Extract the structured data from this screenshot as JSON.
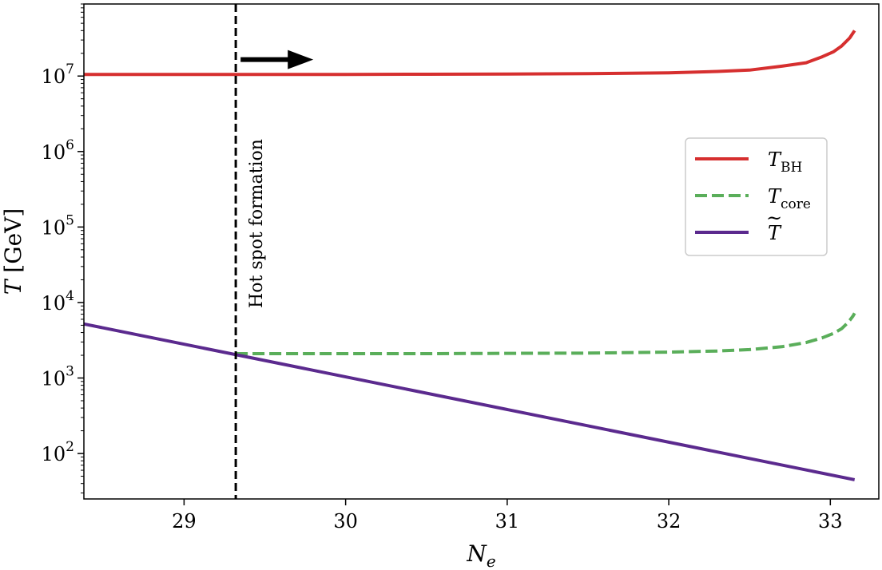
{
  "chart_data": {
    "type": "line",
    "title": "",
    "xlabel": "N_e",
    "ylabel": "T [GeV]",
    "yscale": "log",
    "xlim": [
      28.38,
      33.3
    ],
    "ylim": [
      25,
      90000000
    ],
    "grid": false,
    "legend_position": "center-right",
    "x_ticks": [
      {
        "value": 29,
        "label": "29"
      },
      {
        "value": 30,
        "label": "30"
      },
      {
        "value": 31,
        "label": "31"
      },
      {
        "value": 32,
        "label": "32"
      },
      {
        "value": 33,
        "label": "33"
      }
    ],
    "y_ticks": [
      {
        "value": 100,
        "base": "10",
        "exp": "2"
      },
      {
        "value": 1000,
        "base": "10",
        "exp": "3"
      },
      {
        "value": 10000,
        "base": "10",
        "exp": "4"
      },
      {
        "value": 100000,
        "base": "10",
        "exp": "5"
      },
      {
        "value": 1000000,
        "base": "10",
        "exp": "6"
      },
      {
        "value": 10000000,
        "base": "10",
        "exp": "7"
      }
    ],
    "series": [
      {
        "name": "T_BH",
        "label_main": "T",
        "label_sub": "BH",
        "color": "#d62f2f",
        "dash": "solid",
        "x": [
          28.38,
          29.0,
          29.32,
          30.0,
          30.5,
          31.0,
          31.5,
          32.0,
          32.3,
          32.5,
          32.7,
          32.85,
          32.95,
          33.02,
          33.07,
          33.1,
          33.12,
          33.14,
          33.15
        ],
        "y": [
          10500000,
          10500000,
          10500000,
          10500000,
          10550000,
          10600000,
          10750000,
          11000000,
          11500000,
          12000000,
          13500000,
          15000000,
          18000000,
          21000000,
          25000000,
          29000000,
          32000000,
          37000000,
          40000000
        ]
      },
      {
        "name": "T_core",
        "label_main": "T",
        "label_sub": "core",
        "color": "#5aae5a",
        "dash": "dashed",
        "x": [
          29.32,
          29.5,
          30.0,
          30.5,
          31.0,
          31.5,
          32.0,
          32.3,
          32.5,
          32.7,
          32.85,
          32.95,
          33.02,
          33.07,
          33.1,
          33.12,
          33.14,
          33.15
        ],
        "y": [
          2100,
          2100,
          2100,
          2100,
          2120,
          2140,
          2200,
          2280,
          2380,
          2600,
          2950,
          3400,
          3900,
          4500,
          5200,
          5800,
          6600,
          7200
        ]
      },
      {
        "name": "T~",
        "label_main": "T",
        "label_sub": "",
        "color": "#5b2a8e",
        "dash": "solid",
        "x": [
          28.38,
          33.15
        ],
        "y": [
          5200,
          45
        ]
      }
    ],
    "vline": {
      "x": 29.32,
      "color": "#000000",
      "dash": "dashed"
    },
    "annotation": {
      "text": "Hot spot formation"
    },
    "arrow": {
      "x_start": 29.35,
      "x_end": 29.8,
      "y": 16500000
    }
  }
}
